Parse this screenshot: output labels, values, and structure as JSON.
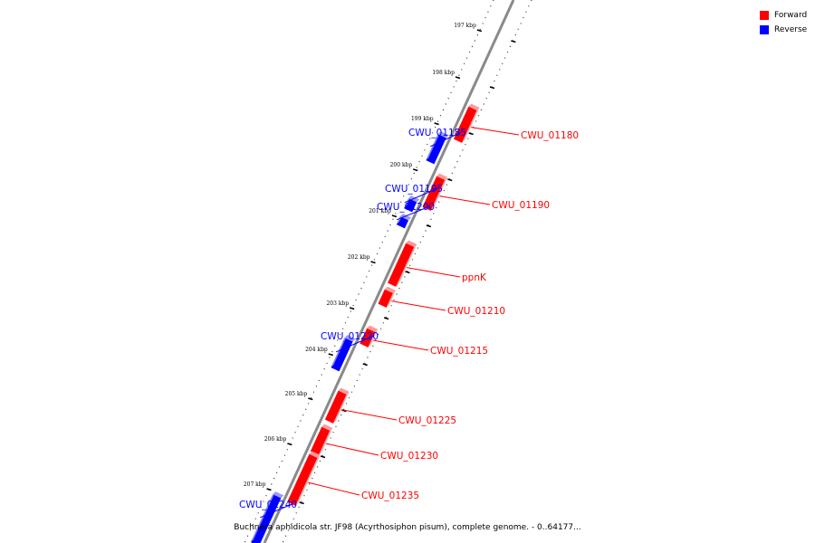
{
  "legend": {
    "forward_label": "Forward",
    "reverse_label": "Reverse",
    "forward_color": "#ff0000",
    "reverse_color": "#0000ff"
  },
  "caption": "Buchnera aphidicola str. JF98 (Acyrthosiphon pisum), complete genome. - 0..64177...",
  "ticks": [
    "197 kbp",
    "198 kbp",
    "199 kbp",
    "200 kbp",
    "201 kbp",
    "202 kbp",
    "203 kbp",
    "204 kbp",
    "205 kbp",
    "206 kbp",
    "207 kbp"
  ],
  "genes": [
    {
      "name": "CWU_01180",
      "strand": "forward"
    },
    {
      "name": "CWU_01185",
      "strand": "reverse"
    },
    {
      "name": "CWU_01190",
      "strand": "forward"
    },
    {
      "name": "CWU_01195",
      "strand": "reverse"
    },
    {
      "name": "CWU_01200",
      "strand": "reverse"
    },
    {
      "name": "ppnK",
      "strand": "forward"
    },
    {
      "name": "CWU_01210",
      "strand": "forward"
    },
    {
      "name": "CWU_01215",
      "strand": "forward"
    },
    {
      "name": "CWU_01220",
      "strand": "reverse"
    },
    {
      "name": "CWU_01225",
      "strand": "forward"
    },
    {
      "name": "CWU_01230",
      "strand": "forward"
    },
    {
      "name": "CWU_01235",
      "strand": "forward"
    },
    {
      "name": "CWU_01240",
      "strand": "reverse"
    }
  ]
}
